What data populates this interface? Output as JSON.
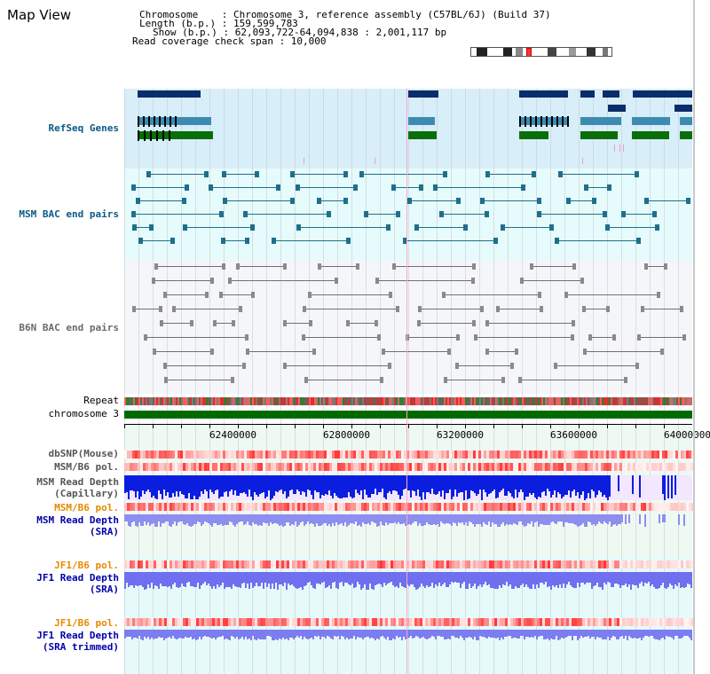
{
  "header": {
    "title": "Map View",
    "chromosome_line": "Chromosome    : Chromosome 3, reference assembly (C57BL/6J) (Build 37)",
    "length_line": "Length (b.p.) : 159,599,783",
    "show_line": "Show (b.p.) : 62,093,722-64,094,838 : 2,001,117 bp",
    "coverage_line": "Read coverage check span : 10,000"
  },
  "tracks": {
    "refseq": "RefSeq Genes",
    "msm_bac": "MSM BAC end pairs",
    "b6n_bac": "B6N BAC end pairs",
    "repeat": "Repeat",
    "chromosome": "chromosome 3",
    "dbsnp": "dbSNP(Mouse)",
    "msm_b6_pol": "MSM/B6 pol.",
    "msm_depth_cap_1": "MSM Read Depth",
    "msm_depth_cap_2": "(Capillary)",
    "msm_b6_pol2": "MSM/B6 pol.",
    "msm_depth_sra_1": "MSM Read Depth",
    "msm_depth_sra_2": "(SRA)",
    "jf1_b6_pol": "JF1/B6 pol.",
    "jf1_depth_sra_1": "JF1 Read Depth",
    "jf1_depth_sra_2": "(SRA)",
    "jf1_b6_pol2": "JF1/B6 pol.",
    "jf1_depth_trim_1": "JF1 Read Depth",
    "jf1_depth_trim_2": "(SRA trimmed)"
  },
  "axis": {
    "ticks": [
      "62400000",
      "62800000",
      "63200000",
      "63600000",
      "64000000"
    ]
  },
  "colors": {
    "refseq_bg": "#d8eef9",
    "msm_bg": "#e6fbfb",
    "b6n_bg": "#f5f6fa",
    "gene_dark": "#0b2d6b",
    "gene_mid": "#3e8bb1",
    "gene_green": "#0b6e0b",
    "msm_link": "#1f6f8c",
    "b6n_link": "#707070",
    "chromosome": "#006a00",
    "label_black": "#000000",
    "label_teal": "#0a5a85",
    "label_orange": "#e68a00",
    "label_blue": "#0000aa"
  }
}
